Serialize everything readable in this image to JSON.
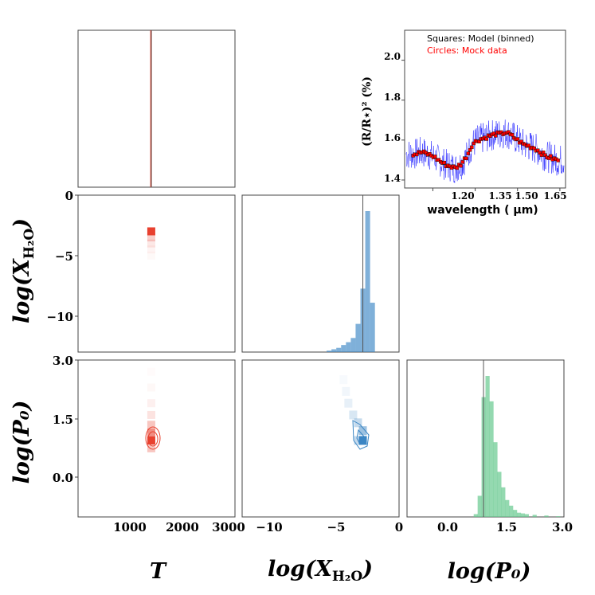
{
  "colors": {
    "red": "#e8412f",
    "blue": "#3b86c4",
    "green": "#67c98f",
    "truth_line": "#555555",
    "spectrum_line": "#0000ff",
    "mock_marker": "#ff0000"
  },
  "chart_data": [
    {
      "type": "histogram",
      "panel": "T-marginal",
      "param": "T",
      "xlim": [
        0,
        3000
      ],
      "truth": 1400,
      "bins": [
        [
          1380,
          1410,
          1.0
        ]
      ]
    },
    {
      "type": "heatmap",
      "panel": "T-vs-logXH2O",
      "x": "T",
      "y": "log(X_H2O)",
      "xlim": [
        0,
        3000
      ],
      "ylim": [
        -13,
        0
      ],
      "yticks": [
        "0",
        "−5",
        "−10"
      ],
      "cells": [
        [
          1400,
          -3.0,
          1.0
        ],
        [
          1400,
          -3.5,
          0.25
        ],
        [
          1400,
          -4.0,
          0.12
        ],
        [
          1400,
          -4.5,
          0.06
        ],
        [
          1400,
          -5.0,
          0.03
        ]
      ]
    },
    {
      "type": "histogram",
      "panel": "logXH2O-marginal",
      "param": "log(X_H2O)",
      "xlim": [
        -13,
        0
      ],
      "truth": -3.0,
      "bins": [
        [
          -6.0,
          0.01
        ],
        [
          -5.6,
          0.02
        ],
        [
          -5.2,
          0.03
        ],
        [
          -4.8,
          0.05
        ],
        [
          -4.4,
          0.07
        ],
        [
          -4.0,
          0.1
        ],
        [
          -3.6,
          0.2
        ],
        [
          -3.2,
          0.45
        ],
        [
          -2.8,
          1.0
        ],
        [
          -2.4,
          0.35
        ]
      ]
    },
    {
      "type": "heatmap",
      "panel": "T-vs-logP0",
      "x": "T",
      "y": "log(P0)",
      "xlim": [
        0,
        3000
      ],
      "ylim": [
        -1,
        3
      ],
      "xticks": [
        "1000",
        "2000",
        "3000"
      ],
      "yticks": [
        "3.0",
        "1.5",
        "0.0"
      ],
      "cells": [
        [
          1400,
          0.95,
          1.0
        ],
        [
          1400,
          1.15,
          0.6
        ],
        [
          1400,
          1.35,
          0.3
        ],
        [
          1400,
          1.6,
          0.15
        ],
        [
          1400,
          1.9,
          0.08
        ],
        [
          1400,
          2.3,
          0.04
        ],
        [
          1400,
          2.7,
          0.02
        ],
        [
          1400,
          0.75,
          0.3
        ]
      ]
    },
    {
      "type": "heatmap",
      "panel": "logXH2O-vs-logP0",
      "x": "log(X_H2O)",
      "y": "log(P0)",
      "xlim": [
        -13,
        0
      ],
      "ylim": [
        -1,
        3
      ],
      "xticks": [
        "−10",
        "−5",
        "0"
      ],
      "cells": [
        [
          -3.0,
          0.95,
          1.0
        ],
        [
          -3.0,
          1.2,
          0.5
        ],
        [
          -3.4,
          1.4,
          0.3
        ],
        [
          -3.8,
          1.6,
          0.2
        ],
        [
          -4.2,
          1.9,
          0.12
        ],
        [
          -4.4,
          2.2,
          0.07
        ],
        [
          -4.6,
          2.5,
          0.04
        ],
        [
          -3.4,
          0.95,
          0.3
        ]
      ]
    },
    {
      "type": "histogram",
      "panel": "logP0-marginal",
      "param": "log(P0)",
      "xlim": [
        -1,
        3
      ],
      "truth": 0.95,
      "xticks": [
        "0.0",
        "1.5",
        "3.0"
      ],
      "bins": [
        [
          0.7,
          0.02
        ],
        [
          0.8,
          0.15
        ],
        [
          0.9,
          0.85
        ],
        [
          1.0,
          1.0
        ],
        [
          1.1,
          0.82
        ],
        [
          1.2,
          0.53
        ],
        [
          1.3,
          0.32
        ],
        [
          1.4,
          0.21
        ],
        [
          1.5,
          0.12
        ],
        [
          1.6,
          0.08
        ],
        [
          1.7,
          0.05
        ],
        [
          1.8,
          0.03
        ],
        [
          1.9,
          0.025
        ],
        [
          2.0,
          0.02
        ],
        [
          2.2,
          0.015
        ],
        [
          2.5,
          0.01
        ],
        [
          2.8,
          0.005
        ]
      ]
    },
    {
      "type": "line",
      "panel": "spectrum",
      "title": "",
      "xlabel": "wavelength ( μm)",
      "ylabel": "(R/R⋆)² (%)",
      "xlim": [
        1.1,
        1.67
      ],
      "ylim": [
        1.36,
        2.15
      ],
      "xticks": [
        "1.20",
        "1.35",
        "1.50",
        "1.65"
      ],
      "yticks": [
        "1.4",
        "1.6",
        "1.8",
        "2.0"
      ],
      "legend": [
        "Squares: Model (binned)",
        "Circles: Mock data"
      ],
      "model_x": [
        1.14,
        1.16,
        1.18,
        1.2,
        1.22,
        1.24,
        1.26,
        1.28,
        1.3,
        1.32,
        1.34,
        1.36,
        1.38,
        1.4,
        1.42,
        1.44,
        1.46,
        1.48,
        1.5,
        1.52,
        1.54,
        1.56,
        1.58,
        1.6,
        1.62,
        1.64
      ],
      "model_y": [
        1.53,
        1.54,
        1.53,
        1.52,
        1.5,
        1.48,
        1.47,
        1.46,
        1.48,
        1.52,
        1.58,
        1.6,
        1.61,
        1.62,
        1.63,
        1.63,
        1.64,
        1.62,
        1.6,
        1.58,
        1.57,
        1.56,
        1.54,
        1.52,
        1.51,
        1.5
      ]
    }
  ],
  "axis_labels": {
    "T": "T",
    "logX_prefix": "log(X",
    "logX_sub": "H₂O",
    "logX_suffix": ")",
    "logP": "log(P₀)"
  }
}
